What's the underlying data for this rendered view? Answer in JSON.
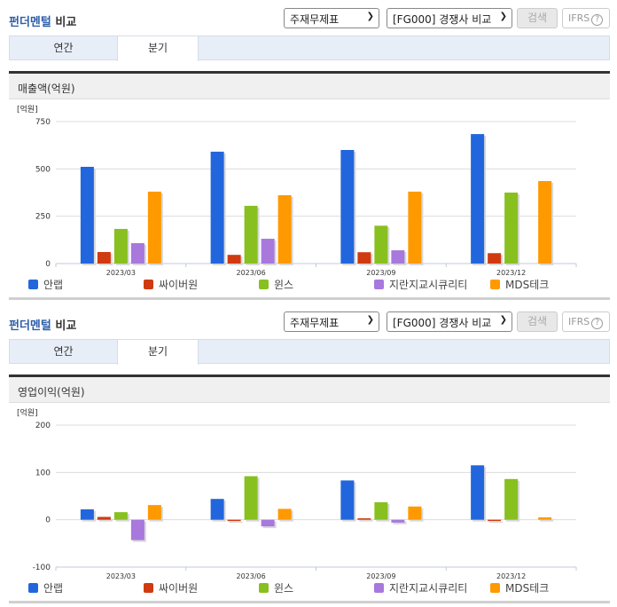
{
  "panels": [
    {
      "title_part1": "펀더멘털",
      "title_part2": " 비교",
      "select1": "주재무제표",
      "select2": "[FG000] 경쟁사 비교",
      "search_label": "검색",
      "ifrs_label": "IFRS",
      "tabs": [
        {
          "label": "연간",
          "active": false
        },
        {
          "label": "분기",
          "active": true
        }
      ],
      "metric_label": "매출액(억원)"
    },
    {
      "title_part1": "펀더멘털",
      "title_part2": " 비교",
      "select1": "주재무제표",
      "select2": "[FG000] 경쟁사 비교",
      "search_label": "검색",
      "ifrs_label": "IFRS",
      "tabs": [
        {
          "label": "연간",
          "active": false
        },
        {
          "label": "분기",
          "active": true
        }
      ],
      "metric_label": "영업이익(억원)"
    }
  ],
  "chart_data": [
    {
      "type": "bar",
      "title": "매출액(억원)",
      "ylabel": "[억원]",
      "xlabel": "",
      "categories": [
        "2023/03",
        "2023/06",
        "2023/09",
        "2023/12"
      ],
      "yticks": [
        0,
        250,
        500,
        750
      ],
      "ylim": [
        0,
        750
      ],
      "grid": true,
      "legend_position": "bottom",
      "series": [
        {
          "name": "안랩",
          "color": "#2266dd",
          "values": [
            511,
            591,
            600,
            684
          ]
        },
        {
          "name": "싸이버원",
          "color": "#d03a10",
          "values": [
            61,
            46,
            60,
            55
          ]
        },
        {
          "name": "윈스",
          "color": "#88c020",
          "values": [
            183,
            305,
            200,
            375
          ]
        },
        {
          "name": "지란지교시큐리티",
          "color": "#a878dd",
          "values": [
            108,
            131,
            70,
            0
          ]
        },
        {
          "name": "MDS테크",
          "color": "#ff9900",
          "values": [
            380,
            361,
            380,
            436
          ]
        }
      ]
    },
    {
      "type": "bar",
      "title": "영업이익(억원)",
      "ylabel": "[억원]",
      "xlabel": "",
      "categories": [
        "2023/03",
        "2023/06",
        "2023/09",
        "2023/12"
      ],
      "yticks": [
        -100,
        0,
        100,
        200
      ],
      "ylim": [
        -100,
        200
      ],
      "grid": true,
      "legend_position": "bottom",
      "series": [
        {
          "name": "안랩",
          "color": "#2266dd",
          "values": [
            22,
            44,
            83,
            115
          ]
        },
        {
          "name": "싸이버원",
          "color": "#d03a10",
          "values": [
            6,
            -2,
            3,
            -2
          ]
        },
        {
          "name": "윈스",
          "color": "#88c020",
          "values": [
            16,
            92,
            37,
            86
          ]
        },
        {
          "name": "지란지교시큐리티",
          "color": "#a878dd",
          "values": [
            -43,
            -14,
            -6,
            0
          ]
        },
        {
          "name": "MDS테크",
          "color": "#ff9900",
          "values": [
            31,
            23,
            28,
            5
          ]
        }
      ]
    }
  ]
}
